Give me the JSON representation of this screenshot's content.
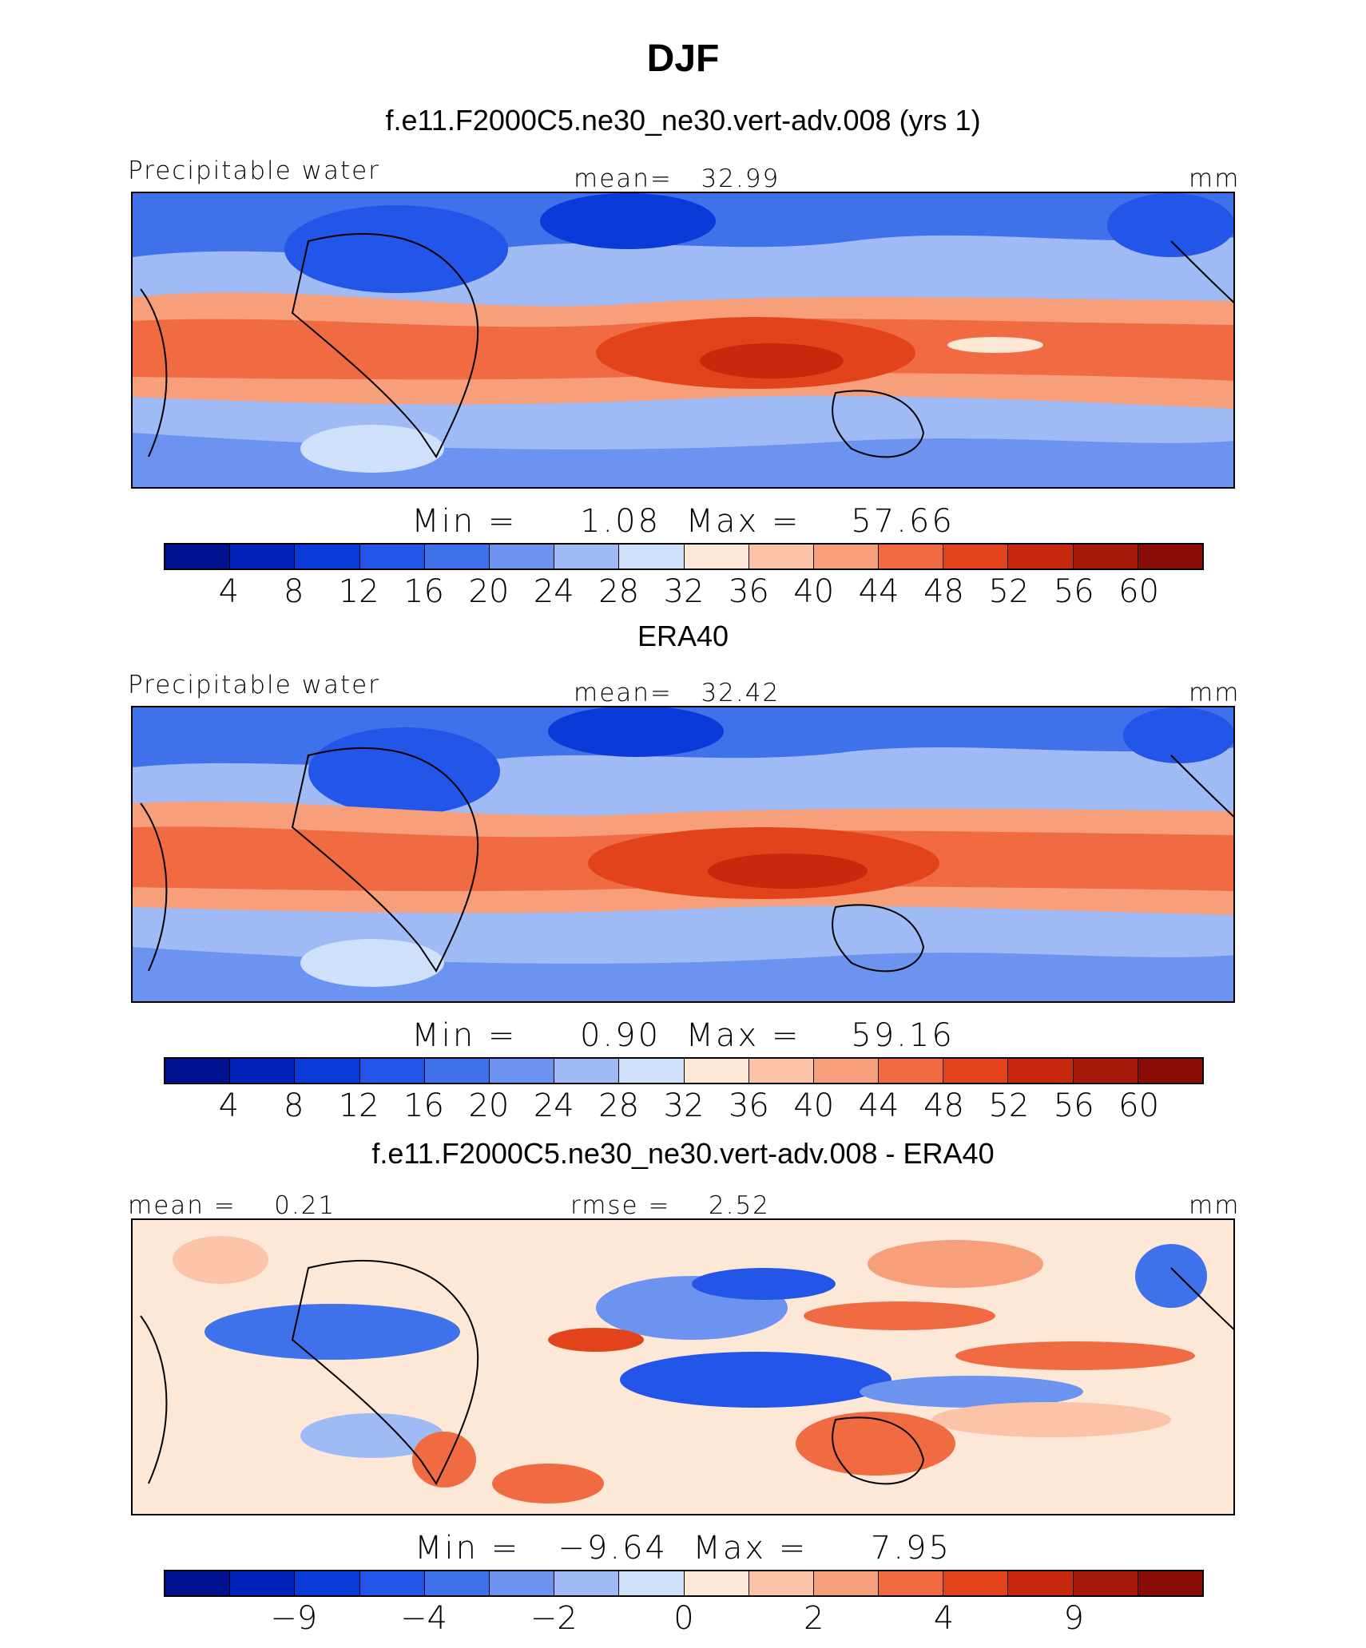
{
  "title": "DJF",
  "colors": [
    "#00128f",
    "#0022b8",
    "#0a3ad8",
    "#2255e8",
    "#3f72ea",
    "#6b93ef",
    "#9fbaf5",
    "#cfe0fb",
    "#fde8d8",
    "#fbc4a8",
    "#f79e7a",
    "#f06a42",
    "#e3431a",
    "#c8290c",
    "#a5180a",
    "#8a0c06"
  ],
  "panels": [
    {
      "header": "f.e11.F2000C5.ne30_ne30.vert-adv.008 (yrs 1)",
      "left_label": "Precipitable water",
      "center_label": "mean=   32.99",
      "right_label": "mm",
      "minmax": "Min =     1.08  Max =    57.66",
      "ticks": [
        "4",
        "8",
        "12",
        "16",
        "20",
        "24",
        "28",
        "32",
        "36",
        "40",
        "44",
        "48",
        "52",
        "56",
        "60"
      ]
    },
    {
      "header": "ERA40",
      "left_label": "Precipitable water",
      "center_label": "mean=   32.42",
      "right_label": "mm",
      "minmax": "Min =     0.90  Max =    59.16",
      "ticks": [
        "4",
        "8",
        "12",
        "16",
        "20",
        "24",
        "28",
        "32",
        "36",
        "40",
        "44",
        "48",
        "52",
        "56",
        "60"
      ]
    },
    {
      "header": "f.e11.F2000C5.ne30_ne30.vert-adv.008 - ERA40",
      "left_label": "mean =    0.21",
      "center_label": "rmse =    2.52",
      "right_label": "mm",
      "minmax": "Min =   −9.64  Max =     7.95",
      "ticks": [
        "−9",
        "−4",
        "−2",
        "0",
        "2",
        "4",
        "9"
      ]
    }
  ]
}
